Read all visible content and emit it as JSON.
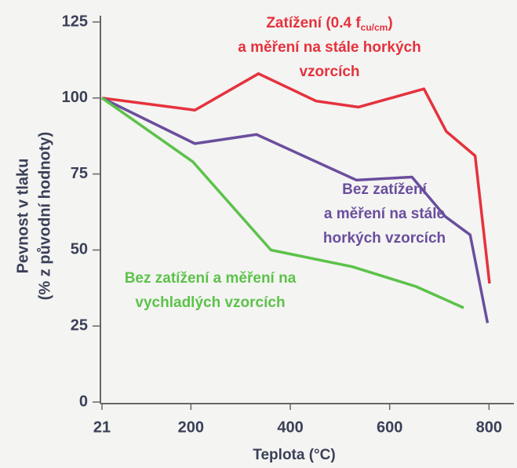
{
  "chart_data": {
    "type": "line",
    "xlabel": "Teplota   (°C)",
    "ylabel": [
      "Pevnost v tlaku",
      "(% z původní hodnoty)"
    ],
    "xlim": [
      21,
      850
    ],
    "ylim": [
      0,
      125
    ],
    "xticks": [
      21,
      200,
      400,
      600,
      800
    ],
    "yticks": [
      0,
      25,
      50,
      75,
      100,
      125
    ],
    "grid": false,
    "series": [
      {
        "color": "#e5323d",
        "label_lines": [
          [
            {
              "text": "Zatížení (0.4 f"
            },
            {
              "text": "cu/cm",
              "sub": true
            },
            {
              "text": ")"
            }
          ],
          [
            {
              "text": "a měření na stále horkých"
            }
          ],
          [
            {
              "text": "vzorcích"
            }
          ]
        ],
        "x": [
          21,
          208,
          336,
          452,
          537,
          669,
          714,
          772,
          801
        ],
        "values": [
          100,
          96,
          108,
          99,
          97,
          103,
          89,
          81,
          39
        ]
      },
      {
        "color": "#6a4e9e",
        "label_lines": [
          [
            {
              "text": "Bez zatížení"
            }
          ],
          [
            {
              "text": "a měření na stále"
            }
          ],
          [
            {
              "text": "horkých vzorcích"
            }
          ]
        ],
        "x": [
          21,
          208,
          332,
          533,
          645,
          712,
          762,
          797
        ],
        "values": [
          100,
          85,
          88,
          73,
          74,
          61,
          55,
          26
        ]
      },
      {
        "color": "#5cc24a",
        "label_lines": [
          [
            {
              "text": "Bez zatížení a měření na"
            }
          ],
          [
            {
              "text": "vychladlých vzorcích"
            }
          ]
        ],
        "x": [
          21,
          204,
          361,
          525,
          653,
          749
        ],
        "values": [
          100,
          79,
          50,
          44.5,
          38,
          31
        ]
      }
    ]
  }
}
